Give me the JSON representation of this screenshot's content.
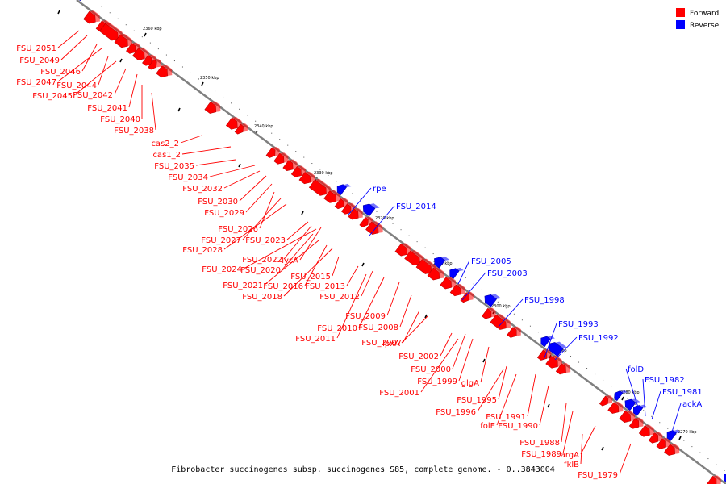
{
  "caption": "Fibrobacter succinogenes subsp. succinogenes S85, complete genome. - 0..3843004",
  "legend": [
    {
      "label": "Forward",
      "color": "#ff0000"
    },
    {
      "label": "Reverse",
      "color": "#0000ff"
    }
  ],
  "colors": {
    "forward": "#ff0000",
    "reverse": "#0000ff",
    "backbone": "#808080"
  },
  "ticks": [
    "2360 kbp",
    "2350 kbp",
    "2340 kbp",
    "2330 kbp",
    "2320 kbp",
    "2310 kbp",
    "2300 kbp",
    "2290 kbp",
    "2280 kbp",
    "2270 kbp"
  ],
  "forward_genes": [
    "FSU_2051",
    "FSU_2049",
    "FSU_2046",
    "FSU_2047",
    "FSU_2044",
    "FSU_2045",
    "FSU_2042",
    "FSU_2041",
    "FSU_2040",
    "FSU_2038",
    "cas2_2",
    "cas1_2",
    "FSU_2035",
    "FSU_2034",
    "FSU_2032",
    "FSU_2030",
    "FSU_2029",
    "FSU_2026",
    "FSU_2027",
    "FSU_2023",
    "FSU_2028",
    "FSU_2022",
    "lysA",
    "FSU_2020",
    "FSU_2024",
    "FSU_2015",
    "FSU_2021",
    "FSU_2016",
    "FSU_2013",
    "FSU_2018",
    "FSU_2012",
    "FSU_2009",
    "FSU_2010",
    "FSU_2008",
    "FSU_2011",
    "FSU_2007",
    "lpxA",
    "FSU_2002",
    "FSU_2000",
    "FSU_1999",
    "glgA",
    "FSU_2001",
    "FSU_1995",
    "FSU_1996",
    "FSU_1991",
    "folE",
    "FSU_1990",
    "FSU_1988",
    "FSU_1989",
    "argA",
    "fklB",
    "FSU_1979"
  ],
  "reverse_genes": [
    "rpe",
    "FSU_2014",
    "FSU_2005",
    "FSU_2003",
    "FSU_1998",
    "FSU_1993",
    "FSU_1992",
    "folD",
    "FSU_1982",
    "FSU_1981",
    "ackA"
  ]
}
